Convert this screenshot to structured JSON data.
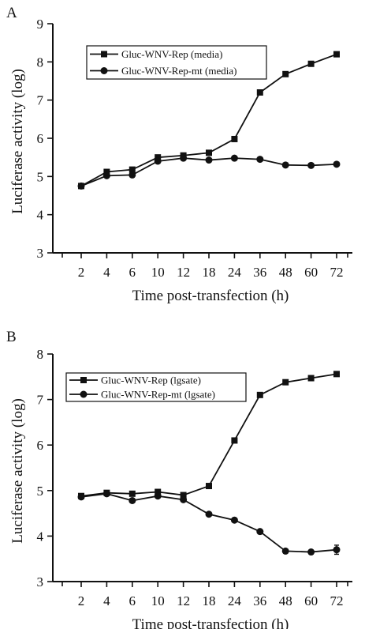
{
  "chart_data": [
    {
      "panel": "A",
      "type": "line",
      "xlabel": "Time post-transfection (h)",
      "ylabel": "Luciferase activity (log)",
      "categories": [
        "2",
        "4",
        "6",
        "10",
        "12",
        "18",
        "24",
        "36",
        "48",
        "60",
        "72"
      ],
      "ylim": [
        3,
        9
      ],
      "yticks": [
        3,
        4,
        5,
        6,
        7,
        8,
        9
      ],
      "legend_position": "top-left",
      "series": [
        {
          "name": "Gluc-WNV-Rep (media)",
          "marker": "square",
          "values": [
            4.75,
            5.12,
            5.18,
            5.5,
            5.55,
            5.62,
            5.98,
            7.2,
            7.68,
            7.95,
            8.2
          ]
        },
        {
          "name": "Gluc-WNV-Rep-mt (media)",
          "marker": "circle",
          "values": [
            4.75,
            5.02,
            5.04,
            5.4,
            5.48,
            5.43,
            5.48,
            5.45,
            5.3,
            5.29,
            5.32
          ]
        }
      ]
    },
    {
      "panel": "B",
      "type": "line",
      "xlabel": "Time post-transfection (h)",
      "ylabel": "Luciferase activity (log)",
      "categories": [
        "2",
        "4",
        "6",
        "10",
        "12",
        "18",
        "24",
        "36",
        "48",
        "60",
        "72"
      ],
      "ylim": [
        3,
        8
      ],
      "yticks": [
        3,
        4,
        5,
        6,
        7,
        8
      ],
      "legend_position": "top-left",
      "series": [
        {
          "name": "Gluc-WNV-Rep (lgsate)",
          "marker": "square",
          "values": [
            4.88,
            4.95,
            4.93,
            4.97,
            4.9,
            5.1,
            6.1,
            7.1,
            7.38,
            7.47,
            7.56
          ],
          "errors": [
            0.03,
            0.03,
            0.03,
            0.03,
            0.03,
            0.03,
            0.03,
            0.03,
            0.03,
            0.03,
            0.03
          ]
        },
        {
          "name": "Gluc-WNV-Rep-mt (lgsate)",
          "marker": "circle",
          "values": [
            4.86,
            4.93,
            4.78,
            4.88,
            4.8,
            4.48,
            4.35,
            4.1,
            3.67,
            3.65,
            3.7
          ],
          "errors": [
            0.03,
            0.03,
            0.03,
            0.03,
            0.03,
            0.03,
            0.03,
            0.03,
            0.03,
            0.03,
            0.1
          ]
        }
      ]
    }
  ]
}
